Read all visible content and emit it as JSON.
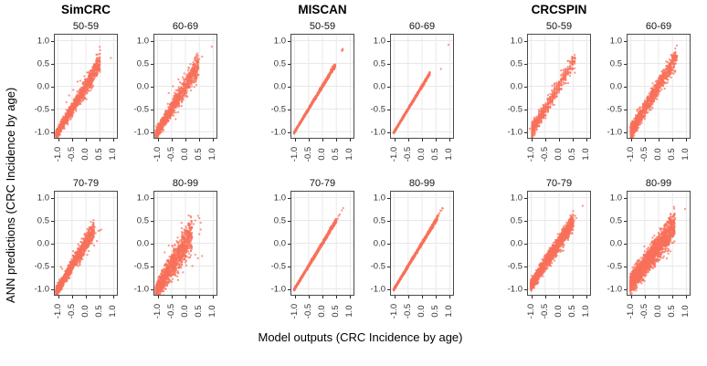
{
  "chart_data": {
    "type": "scatter",
    "title": "",
    "xlabel": "Model outputs (CRC Incidence by age)",
    "ylabel": "ANN predictions (CRC Incidence by age)",
    "col_groups": [
      "SimCRC",
      "MISCAN",
      "CRCSPIN"
    ],
    "age_groups": [
      "50-59",
      "60-69",
      "70-79",
      "80-99"
    ],
    "point_color": "#f8705a",
    "grid_color": "#e8e8e8",
    "border_color": "#4a4a4a",
    "axis": {
      "ticks": [
        -1.0,
        -0.5,
        0.0,
        0.5,
        1.0
      ],
      "tick_labels": [
        "-1.0",
        "-0.5",
        "0.0",
        "0.5",
        "1.0"
      ],
      "range": [
        -1.15,
        1.15
      ],
      "grid": true
    },
    "panels": [
      {
        "group": "SimCRC",
        "age_group": "50-59",
        "pattern": "dense-diagonal",
        "n": 1300,
        "x_min": -1.07,
        "x_max": 0.52,
        "x_skew": 1.5,
        "slope": 1,
        "intercept": 0,
        "noise_sd": 0.045,
        "tail_spread": 1.6,
        "outliers": [
          [
            0.9,
            0.62
          ],
          [
            0.3,
            0.45
          ],
          [
            0.38,
            0.5
          ],
          [
            0.45,
            0.42
          ],
          [
            0.42,
            0.55
          ],
          [
            -0.6,
            -0.2
          ],
          [
            -0.45,
            -0.08
          ],
          [
            -0.3,
            0.1
          ],
          [
            -0.7,
            -0.35
          ],
          [
            -0.2,
            0.12
          ],
          [
            0.05,
            0.3
          ],
          [
            -0.05,
            0.22
          ]
        ]
      },
      {
        "group": "SimCRC",
        "age_group": "60-69",
        "pattern": "dense-diagonal",
        "n": 1300,
        "x_min": -1.07,
        "x_max": 0.47,
        "x_skew": 1.5,
        "slope": 1,
        "intercept": 0,
        "noise_sd": 0.05,
        "tail_spread": 1.8,
        "outliers": [
          [
            0.95,
            0.87
          ],
          [
            0.6,
            0.65
          ],
          [
            0.5,
            0.6
          ],
          [
            0.42,
            0.52
          ],
          [
            -0.25,
            0.15
          ],
          [
            -0.1,
            0.2
          ],
          [
            0.1,
            0.35
          ],
          [
            -0.45,
            0.0
          ],
          [
            -0.6,
            -0.15
          ],
          [
            -0.35,
            -0.72
          ]
        ]
      },
      {
        "group": "SimCRC",
        "age_group": "70-79",
        "pattern": "dense-diagonal",
        "n": 1300,
        "x_min": -1.07,
        "x_max": 0.3,
        "x_skew": 1.4,
        "slope": 1,
        "intercept": 0,
        "noise_sd": 0.05,
        "tail_spread": 1.2,
        "outliers": [
          [
            0.45,
            0.27
          ],
          [
            0.55,
            0.3
          ],
          [
            0.5,
            0.28
          ],
          [
            0.35,
            0.22
          ],
          [
            -0.9,
            -0.52
          ],
          [
            -0.85,
            -0.56
          ],
          [
            0.3,
            -0.05
          ],
          [
            0.4,
            0.05
          ],
          [
            -0.15,
            0.1
          ],
          [
            0.32,
            0.35
          ]
        ]
      },
      {
        "group": "SimCRC",
        "age_group": "80-99",
        "pattern": "wide-cloud",
        "n": 1300,
        "x_min": -1.07,
        "x_max": 0.24,
        "x_skew": 1.3,
        "slope": 1,
        "intercept": 0,
        "noise_sd": 0.085,
        "tail_spread": 1.6,
        "outliers": [
          [
            0.45,
            0.6
          ],
          [
            0.5,
            0.55
          ],
          [
            0.55,
            0.45
          ],
          [
            0.35,
            0.5
          ],
          [
            0.3,
            0.42
          ],
          [
            0.45,
            -0.33
          ],
          [
            0.6,
            -0.28
          ],
          [
            0.35,
            -0.25
          ],
          [
            0.25,
            -0.5
          ],
          [
            0.5,
            0.2
          ],
          [
            0.55,
            0.3
          ],
          [
            -0.6,
            -0.05
          ],
          [
            -0.75,
            -0.2
          ]
        ]
      },
      {
        "group": "MISCAN",
        "age_group": "50-59",
        "pattern": "tight-line",
        "n": 1100,
        "x_min": -1.02,
        "x_max": 0.46,
        "x_skew": 1.2,
        "slope": 1,
        "intercept": 0,
        "noise_sd": 0.008,
        "tail_spread": 1.5,
        "outliers": [
          [
            0.7,
            0.78
          ],
          [
            0.72,
            0.8
          ],
          [
            0.73,
            0.82
          ],
          [
            0.71,
            0.79
          ],
          [
            0.72,
            0.78
          ],
          [
            0.3,
            0.37
          ],
          [
            0.35,
            0.43
          ],
          [
            0.4,
            0.46
          ],
          [
            0.43,
            0.47
          ]
        ]
      },
      {
        "group": "MISCAN",
        "age_group": "60-69",
        "pattern": "tight-line",
        "n": 1100,
        "x_min": -1.02,
        "x_max": 0.28,
        "x_skew": 1.2,
        "slope": 1,
        "intercept": 0,
        "noise_sd": 0.007,
        "tail_spread": 1.2,
        "outliers": [
          [
            0.68,
            0.38
          ],
          [
            0.95,
            0.91
          ]
        ]
      },
      {
        "group": "MISCAN",
        "age_group": "70-79",
        "pattern": "tight-line",
        "n": 1100,
        "x_min": -1.02,
        "x_max": 0.5,
        "x_skew": 1.2,
        "slope": 1,
        "intercept": 0,
        "noise_sd": 0.009,
        "tail_spread": 1.6,
        "outliers": [
          [
            0.55,
            0.54
          ],
          [
            0.58,
            0.6
          ],
          [
            0.62,
            0.63
          ],
          [
            0.7,
            0.72
          ],
          [
            0.75,
            0.77
          ],
          [
            0.45,
            0.5
          ],
          [
            0.48,
            0.53
          ]
        ]
      },
      {
        "group": "MISCAN",
        "age_group": "80-99",
        "pattern": "tight-line",
        "n": 1100,
        "x_min": -1.02,
        "x_max": 0.55,
        "x_skew": 1.2,
        "slope": 1,
        "intercept": 0,
        "noise_sd": 0.01,
        "tail_spread": 1.2,
        "outliers": [
          [
            0.58,
            0.63
          ],
          [
            0.6,
            0.6
          ],
          [
            0.63,
            0.66
          ],
          [
            0.66,
            0.72
          ],
          [
            0.7,
            0.71
          ],
          [
            0.73,
            0.77
          ],
          [
            0.75,
            0.76
          ],
          [
            0.55,
            0.57
          ]
        ]
      },
      {
        "group": "CRCSPIN",
        "age_group": "50-59",
        "pattern": "striped-diagonal",
        "n": 750,
        "x_min": -1.0,
        "x_max": 0.6,
        "x_skew": 1.9,
        "slope": 1,
        "intercept": 0,
        "noise_sd": 0.075,
        "tail_spread": 0.3,
        "x_step": 0.08,
        "outliers": [
          [
            -1.05,
            -0.93
          ],
          [
            0.55,
            0.62
          ],
          [
            0.5,
            0.55
          ],
          [
            0.58,
            0.6
          ],
          [
            0.45,
            0.52
          ]
        ]
      },
      {
        "group": "CRCSPIN",
        "age_group": "60-69",
        "pattern": "striped-diagonal",
        "n": 1200,
        "x_min": -1.0,
        "x_max": 0.65,
        "x_skew": 1.7,
        "slope": 1,
        "intercept": 0,
        "noise_sd": 0.08,
        "tail_spread": 0.4,
        "x_step": 0.055,
        "outliers": [
          [
            0.6,
            0.75
          ],
          [
            0.55,
            0.7
          ],
          [
            0.58,
            0.62
          ],
          [
            0.62,
            0.58
          ],
          [
            -1.02,
            -0.9
          ]
        ]
      },
      {
        "group": "CRCSPIN",
        "age_group": "70-79",
        "pattern": "dense-cloud",
        "n": 1700,
        "x_min": -1.02,
        "x_max": 0.52,
        "x_skew": 1.2,
        "slope": 0.92,
        "intercept": 0.01,
        "noise_sd": 0.06,
        "tail_spread": 0.6,
        "outliers": [
          [
            0.85,
            0.82
          ],
          [
            0.62,
            0.55
          ],
          [
            0.58,
            0.6
          ],
          [
            0.55,
            0.5
          ],
          [
            -1.02,
            -0.95
          ]
        ]
      },
      {
        "group": "CRCSPIN",
        "age_group": "80-99",
        "pattern": "wide-cloud",
        "n": 1900,
        "x_min": -1.02,
        "x_max": 0.58,
        "x_skew": 1.15,
        "slope": 0.8,
        "intercept": -0.07,
        "noise_sd": 0.11,
        "tail_spread": 0.5,
        "outliers": [
          [
            0.95,
            0.75
          ],
          [
            -0.85,
            -0.95
          ],
          [
            -0.92,
            -0.9
          ],
          [
            -0.78,
            -0.97
          ],
          [
            0.6,
            0.55
          ],
          [
            0.55,
            0.6
          ],
          [
            0.5,
            0.58
          ]
        ]
      }
    ]
  }
}
